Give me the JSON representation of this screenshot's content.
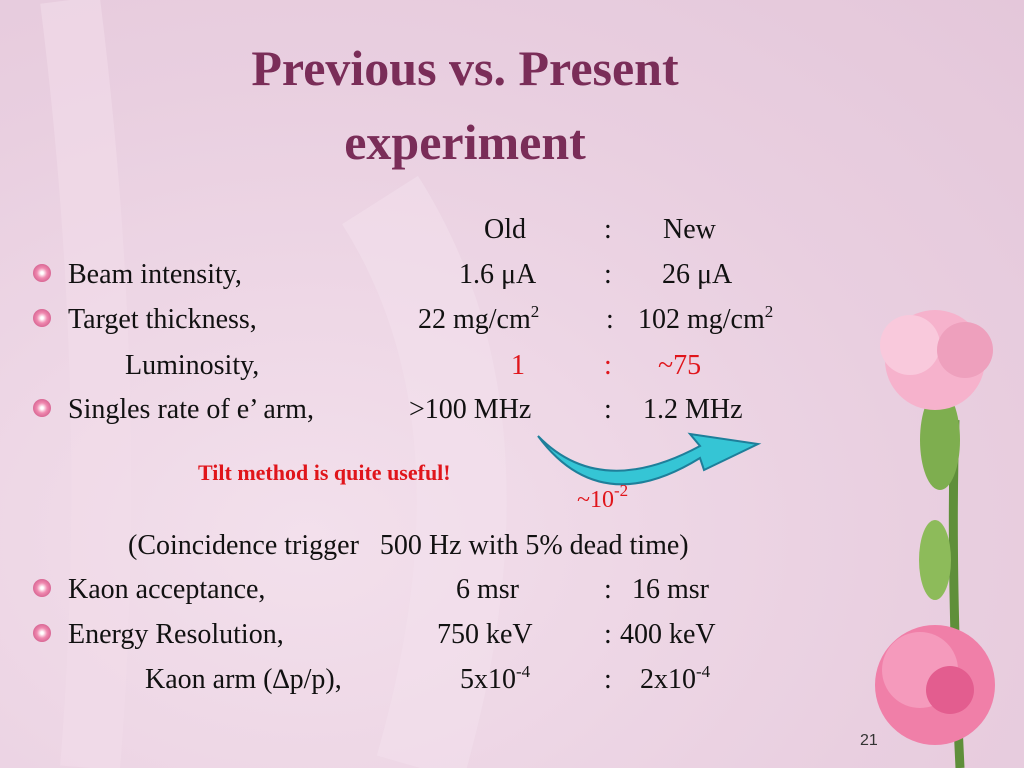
{
  "title": [
    "Previous vs. Present",
    "experiment"
  ],
  "header": {
    "old": "Old",
    "new": "New"
  },
  "separator": ":",
  "rows": [
    {
      "label": "Beam intensity,",
      "old": "1.6 μA",
      "new": "26 μA"
    },
    {
      "label": "Target thickness,",
      "old": "22 mg/cm",
      "old_sup": "2",
      "new": "102 mg/cm",
      "new_sup": "2"
    },
    {
      "label": "Luminosity,",
      "old": "1",
      "new": "~75"
    },
    {
      "label": "Singles rate of e’ arm,",
      "old": ">100 MHz",
      "new": "1.2 MHz"
    }
  ],
  "annotation": {
    "text": "Tilt method is quite useful!",
    "ratio": "~10",
    "ratio_sup": "-2"
  },
  "note": "(Coincidence trigger   500 Hz with 5% dead time)",
  "rows2": [
    {
      "label": "Kaon acceptance,",
      "old": "6 msr",
      "new": "16 msr"
    },
    {
      "label": "Energy Resolution,",
      "old": "750 keV",
      "new": "400 keV"
    },
    {
      "label": "Kaon arm (∆p/p),",
      "old": "5x10",
      "old_sup": "-4",
      "new": "2x10",
      "new_sup": "-4"
    }
  ],
  "page_number": "21"
}
